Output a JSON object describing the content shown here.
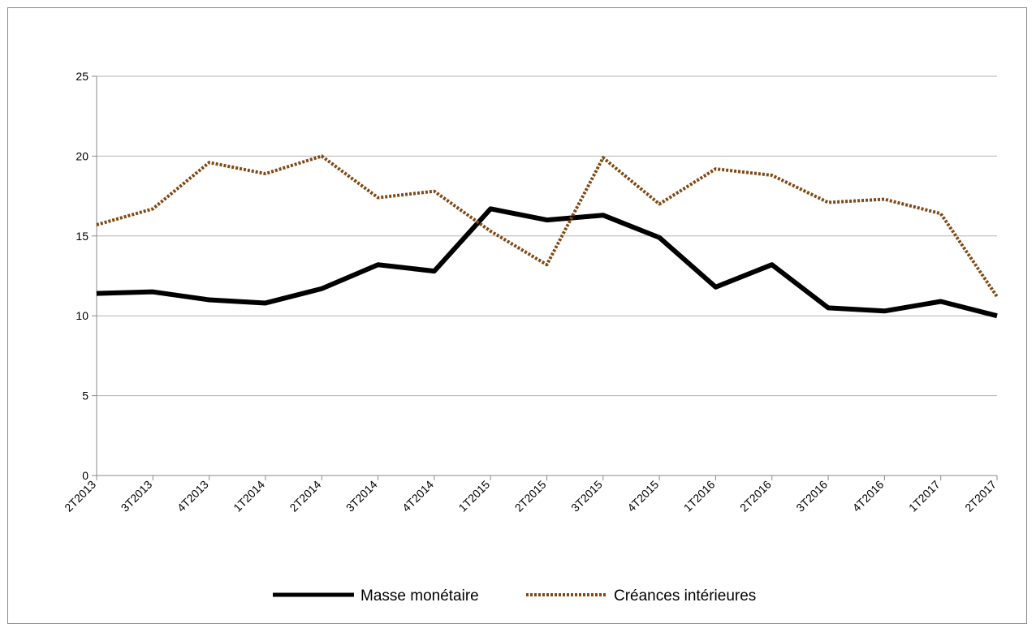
{
  "chart_data": {
    "type": "line",
    "title": "",
    "xlabel": "",
    "ylabel": "",
    "categories": [
      "2T2013",
      "3T2013",
      "4T2013",
      "1T2014",
      "2T2014",
      "3T2014",
      "4T2014",
      "1T2015",
      "2T2015",
      "3T2015",
      "4T2015",
      "1T2016",
      "2T2016",
      "3T2016",
      "4T2016",
      "1T2017",
      "2T2017"
    ],
    "ylim": [
      0,
      25
    ],
    "yticks": [
      0,
      5,
      10,
      15,
      20,
      25
    ],
    "grid": "horizontal",
    "legend_position": "bottom",
    "series": [
      {
        "name": "Masse monétaire",
        "color": "#000000",
        "style": "solid",
        "values": [
          11.4,
          11.5,
          11.0,
          10.8,
          11.7,
          13.2,
          12.8,
          16.7,
          16.0,
          16.3,
          14.9,
          11.8,
          13.2,
          10.5,
          10.3,
          10.9,
          10.0
        ]
      },
      {
        "name": "Créances intérieures",
        "color": "#7f4a14",
        "style": "dotted",
        "values": [
          15.7,
          16.7,
          19.6,
          18.9,
          20.0,
          17.4,
          17.8,
          15.3,
          13.2,
          19.9,
          17.0,
          19.2,
          18.8,
          17.1,
          17.3,
          16.4,
          11.2
        ]
      }
    ]
  }
}
